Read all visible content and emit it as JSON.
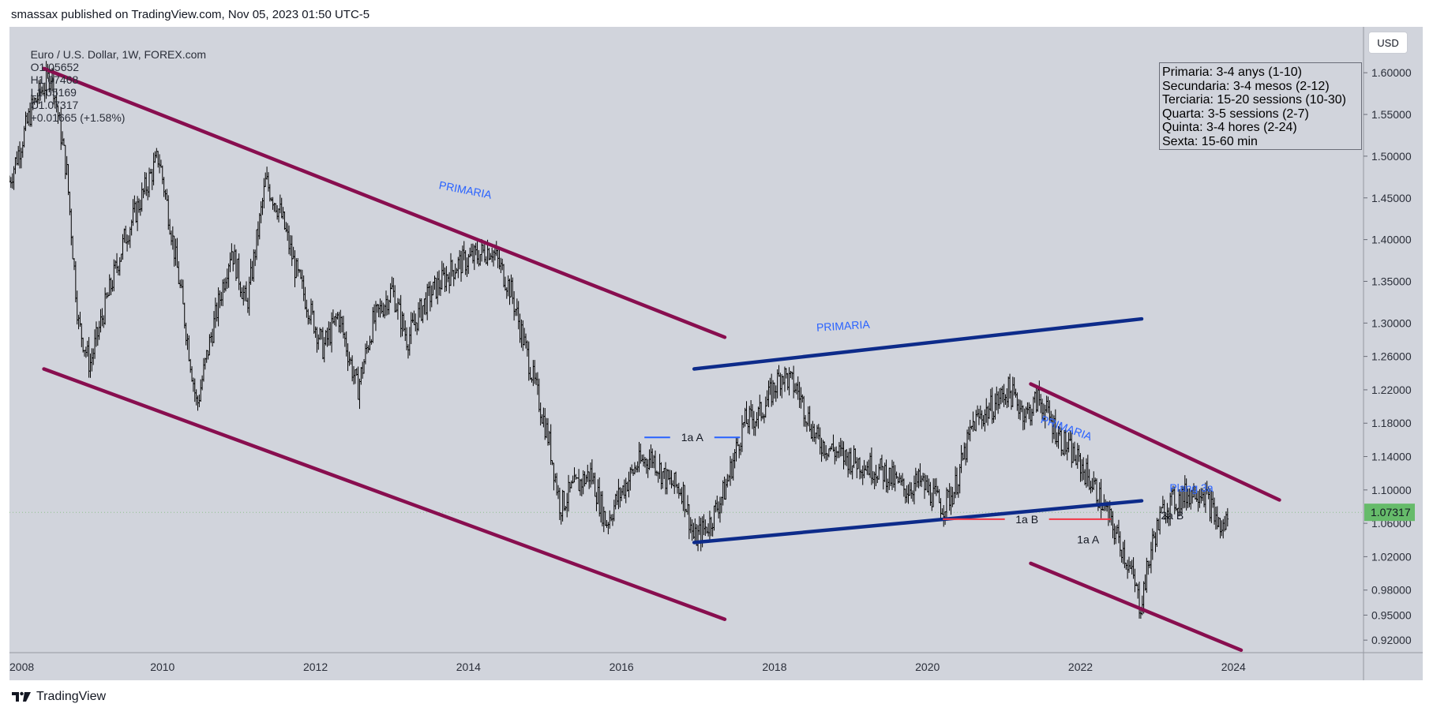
{
  "header": {
    "attribution": "smassax published on TradingView.com, Nov 05, 2023 01:50 UTC-5"
  },
  "symbol_bar": {
    "name": "Euro / U.S. Dollar, 1W, FOREX.com",
    "open": "O1.05652",
    "high": "H1.07468",
    "low": "L1.05169",
    "close": "C1.07317",
    "change": "+0.01665 (+1.58%)"
  },
  "currency_button": "USD",
  "legend_box": {
    "lines": [
      "Primaria: 3-4 anys (1-10)",
      "Secundaria: 3-4 mesos (2-12)",
      "Terciaria: 15-20 sessions (10-30)",
      "Quarta: 3-5 sessions (2-7)",
      "Quinta: 3-4 hores (2-24)",
      "Sexta: 15-60 min"
    ]
  },
  "footer": {
    "brand": "TradingView"
  },
  "colors": {
    "background": "#d1d4dc",
    "candles": "#000000",
    "maroon_channel": "#880e4f",
    "blue_channel": "#0d2b8a",
    "label_blue": "#2962ff",
    "red_line": "#f23645",
    "last_price_badge": "#66bb6a",
    "last_price_line": "#8fbf8f"
  },
  "chart_data": {
    "type": "candlestick",
    "symbol": "EURUSD",
    "timeframe": "1W",
    "xlim": [
      2008.0,
      2025.7
    ],
    "ylim": [
      0.905,
      1.655
    ],
    "x_ticks": [
      "2008",
      "2010",
      "2012",
      "2014",
      "2016",
      "2018",
      "2020",
      "2022",
      "2024"
    ],
    "y_ticks": [
      "1.60000",
      "1.55000",
      "1.50000",
      "1.45000",
      "1.40000",
      "1.35000",
      "1.30000",
      "1.26000",
      "1.22000",
      "1.18000",
      "1.14000",
      "1.10000",
      "1.06000",
      "1.02000",
      "0.98000",
      "0.95000",
      "0.92000"
    ],
    "last_price": "1.07317",
    "price_path": [
      [
        2008.0,
        1.47
      ],
      [
        2008.3,
        1.56
      ],
      [
        2008.55,
        1.6
      ],
      [
        2008.75,
        1.48
      ],
      [
        2008.9,
        1.3
      ],
      [
        2009.05,
        1.25
      ],
      [
        2009.25,
        1.32
      ],
      [
        2009.5,
        1.4
      ],
      [
        2009.95,
        1.5
      ],
      [
        2010.1,
        1.42
      ],
      [
        2010.25,
        1.33
      ],
      [
        2010.45,
        1.2
      ],
      [
        2010.6,
        1.27
      ],
      [
        2010.9,
        1.39
      ],
      [
        2011.1,
        1.32
      ],
      [
        2011.35,
        1.47
      ],
      [
        2011.55,
        1.43
      ],
      [
        2011.75,
        1.36
      ],
      [
        2012.1,
        1.27
      ],
      [
        2012.3,
        1.31
      ],
      [
        2012.55,
        1.22
      ],
      [
        2012.75,
        1.3
      ],
      [
        2013.0,
        1.34
      ],
      [
        2013.2,
        1.28
      ],
      [
        2013.4,
        1.32
      ],
      [
        2013.55,
        1.34
      ],
      [
        2013.85,
        1.37
      ],
      [
        2014.1,
        1.38
      ],
      [
        2014.3,
        1.39
      ],
      [
        2014.55,
        1.34
      ],
      [
        2014.8,
        1.25
      ],
      [
        2015.05,
        1.16
      ],
      [
        2015.2,
        1.08
      ],
      [
        2015.35,
        1.1
      ],
      [
        2015.6,
        1.12
      ],
      [
        2015.8,
        1.06
      ],
      [
        2015.95,
        1.09
      ],
      [
        2016.2,
        1.13
      ],
      [
        2016.4,
        1.14
      ],
      [
        2016.6,
        1.11
      ],
      [
        2016.8,
        1.1
      ],
      [
        2016.95,
        1.04
      ],
      [
        2017.15,
        1.06
      ],
      [
        2017.35,
        1.1
      ],
      [
        2017.6,
        1.18
      ],
      [
        2017.8,
        1.19
      ],
      [
        2018.1,
        1.24
      ],
      [
        2018.3,
        1.22
      ],
      [
        2018.55,
        1.16
      ],
      [
        2018.9,
        1.14
      ],
      [
        2019.2,
        1.13
      ],
      [
        2019.45,
        1.12
      ],
      [
        2019.7,
        1.1
      ],
      [
        2019.9,
        1.11
      ],
      [
        2020.2,
        1.08
      ],
      [
        2020.35,
        1.1
      ],
      [
        2020.6,
        1.18
      ],
      [
        2020.85,
        1.2
      ],
      [
        2021.05,
        1.22
      ],
      [
        2021.3,
        1.19
      ],
      [
        2021.45,
        1.21
      ],
      [
        2021.75,
        1.16
      ],
      [
        2022.0,
        1.13
      ],
      [
        2022.2,
        1.1
      ],
      [
        2022.45,
        1.05
      ],
      [
        2022.55,
        1.03
      ],
      [
        2022.7,
        0.99
      ],
      [
        2022.78,
        0.96
      ],
      [
        2022.95,
        1.04
      ],
      [
        2023.1,
        1.08
      ],
      [
        2023.3,
        1.09
      ],
      [
        2023.5,
        1.1
      ],
      [
        2023.6,
        1.1
      ],
      [
        2023.75,
        1.07
      ],
      [
        2023.85,
        1.05
      ],
      [
        2023.93,
        1.07
      ]
    ],
    "trendlines": [
      {
        "color": "maroon",
        "from": [
          2008.45,
          1.605
        ],
        "to": [
          2017.35,
          1.283
        ]
      },
      {
        "color": "maroon",
        "from": [
          2008.45,
          1.245
        ],
        "to": [
          2017.35,
          0.945
        ]
      },
      {
        "color": "blue",
        "from": [
          2016.95,
          1.245
        ],
        "to": [
          2022.8,
          1.305
        ]
      },
      {
        "color": "blue",
        "from": [
          2016.95,
          1.037
        ],
        "to": [
          2022.8,
          1.087
        ]
      },
      {
        "color": "maroon",
        "from": [
          2021.35,
          1.227
        ],
        "to": [
          2024.6,
          1.088
        ]
      },
      {
        "color": "maroon",
        "from": [
          2021.35,
          1.012
        ],
        "to": [
          2024.1,
          0.908
        ]
      }
    ],
    "horizontal_lines": [
      {
        "color": "blue",
        "y": 1.163,
        "x_from": 2016.3,
        "x_to": 2017.55,
        "label": "1a A"
      },
      {
        "color": "red",
        "y": 1.065,
        "x_from": 2020.2,
        "x_to": 2022.4,
        "label": "1a B"
      }
    ],
    "annotations": [
      {
        "text": "PRIMARIA",
        "color": "blue",
        "x": 2013.95,
        "y": 1.455
      },
      {
        "text": "PRIMARIA",
        "color": "blue",
        "x": 2018.9,
        "y": 1.292
      },
      {
        "text": "PRIMARIA",
        "color": "blue",
        "x": 2021.8,
        "y": 1.17
      },
      {
        "text": "Plang 3a",
        "color": "blue",
        "x": 2023.45,
        "y": 1.098
      },
      {
        "text": "2a B",
        "color": "black",
        "x": 2023.2,
        "y": 1.065
      },
      {
        "text": "1a A",
        "color": "black",
        "x": 2022.1,
        "y": 1.036
      }
    ]
  }
}
